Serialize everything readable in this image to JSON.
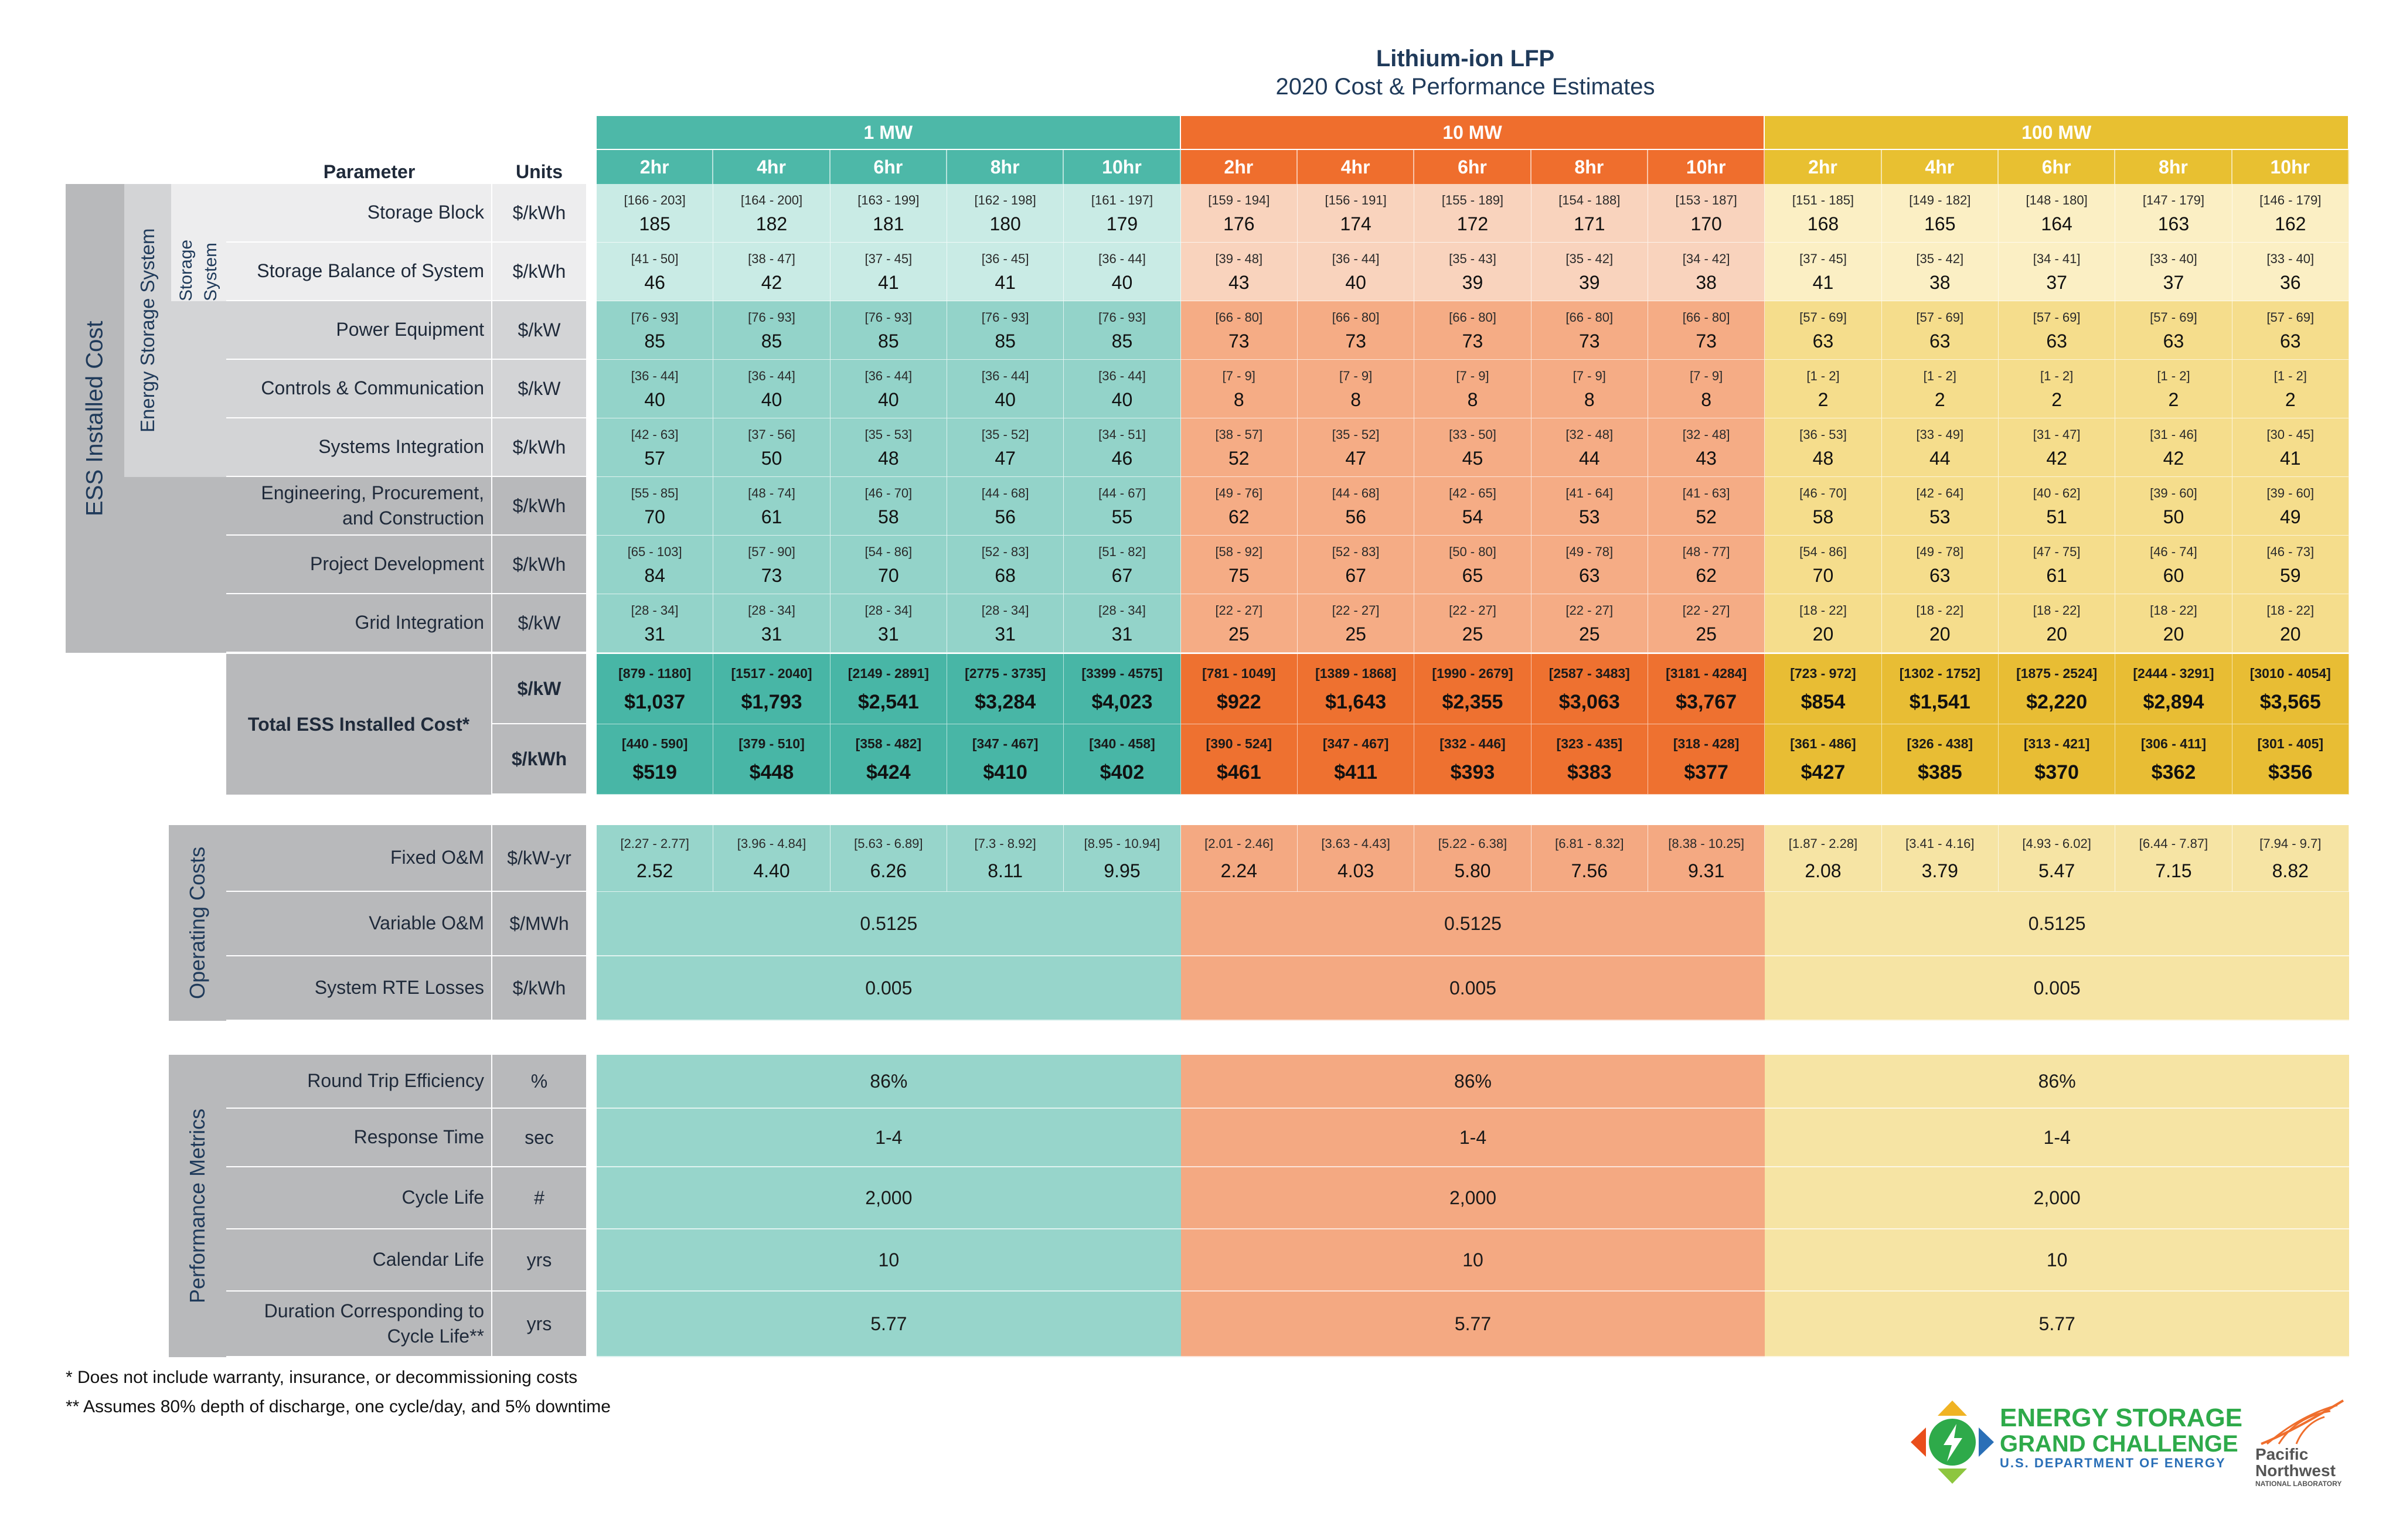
{
  "title": "Lithium-ion LFP",
  "subtitle": "2020 Cost & Performance Estimates",
  "headers": {
    "parameter": "Parameter",
    "units": "Units"
  },
  "mw_groups": [
    "1 MW",
    "10 MW",
    "100 MW"
  ],
  "durations": [
    "2hr",
    "4hr",
    "6hr",
    "8hr",
    "10hr"
  ],
  "colors": {
    "g0": {
      "head": "#4db8a8",
      "dur": "#4db8a8",
      "sub": "#c9ebe5",
      "main": "#93d3c9",
      "total": "#48b6a6",
      "merged": "#97d5cb"
    },
    "g1": {
      "head": "#ef6e2d",
      "dur": "#ef6e2d",
      "sub": "#f9d3bd",
      "main": "#f5ac85",
      "total": "#ee7130",
      "merged": "#f4a982"
    },
    "g2": {
      "head": "#e8c031",
      "dur": "#e8c031",
      "sub": "#fbefc4",
      "main": "#f5dd8c",
      "total": "#e8bd34",
      "merged": "#f6e4a4"
    }
  },
  "side_labels": {
    "ess": "ESS Installed Cost",
    "energy_storage_system": "Energy Storage System",
    "storage_system": "Storage System",
    "operating_costs": "Operating Costs",
    "performance_metrics": "Performance Metrics"
  },
  "rows": [
    {
      "label": "Storage Block",
      "unit": "$/kWh",
      "range": [
        "[166 - 203]",
        "[164 - 200]",
        "[163 - 199]",
        "[162 - 198]",
        "[161 - 197]",
        "[159 - 194]",
        "[156 - 191]",
        "[155 - 189]",
        "[154 - 188]",
        "[153 - 187]",
        "[151 - 185]",
        "[149 - 182]",
        "[148 - 180]",
        "[147 - 179]",
        "[146 - 179]"
      ],
      "value": [
        "185",
        "182",
        "181",
        "180",
        "179",
        "176",
        "174",
        "172",
        "171",
        "170",
        "168",
        "165",
        "164",
        "163",
        "162"
      ]
    },
    {
      "label": "Storage Balance of System",
      "unit": "$/kWh",
      "range": [
        "[41 - 50]",
        "[38 - 47]",
        "[37 - 45]",
        "[36 - 45]",
        "[36 - 44]",
        "[39 - 48]",
        "[36 - 44]",
        "[35 - 43]",
        "[35 - 42]",
        "[34 - 42]",
        "[37 - 45]",
        "[35 - 42]",
        "[34 - 41]",
        "[33 - 40]",
        "[33 - 40]"
      ],
      "value": [
        "46",
        "42",
        "41",
        "41",
        "40",
        "43",
        "40",
        "39",
        "39",
        "38",
        "41",
        "38",
        "37",
        "37",
        "36"
      ]
    },
    {
      "label": "Power Equipment",
      "unit": "$/kW",
      "range": [
        "[76 - 93]",
        "[76 - 93]",
        "[76 - 93]",
        "[76 - 93]",
        "[76 - 93]",
        "[66 - 80]",
        "[66 - 80]",
        "[66 - 80]",
        "[66 - 80]",
        "[66 - 80]",
        "[57 - 69]",
        "[57 - 69]",
        "[57 - 69]",
        "[57 - 69]",
        "[57 - 69]"
      ],
      "value": [
        "85",
        "85",
        "85",
        "85",
        "85",
        "73",
        "73",
        "73",
        "73",
        "73",
        "63",
        "63",
        "63",
        "63",
        "63"
      ]
    },
    {
      "label": "Controls & Communication",
      "unit": "$/kW",
      "range": [
        "[36 - 44]",
        "[36 - 44]",
        "[36 - 44]",
        "[36 - 44]",
        "[36 - 44]",
        "[7 - 9]",
        "[7 - 9]",
        "[7 - 9]",
        "[7 - 9]",
        "[7 - 9]",
        "[1 - 2]",
        "[1 - 2]",
        "[1 - 2]",
        "[1 - 2]",
        "[1 - 2]"
      ],
      "value": [
        "40",
        "40",
        "40",
        "40",
        "40",
        "8",
        "8",
        "8",
        "8",
        "8",
        "2",
        "2",
        "2",
        "2",
        "2"
      ]
    },
    {
      "label": "Systems Integration",
      "unit": "$/kWh",
      "range": [
        "[42 - 63]",
        "[37 - 56]",
        "[35 - 53]",
        "[35 - 52]",
        "[34 - 51]",
        "[38 - 57]",
        "[35 - 52]",
        "[33 - 50]",
        "[32 - 48]",
        "[32 - 48]",
        "[36 - 53]",
        "[33 - 49]",
        "[31 - 47]",
        "[31 - 46]",
        "[30 - 45]"
      ],
      "value": [
        "57",
        "50",
        "48",
        "47",
        "46",
        "52",
        "47",
        "45",
        "44",
        "43",
        "48",
        "44",
        "42",
        "42",
        "41"
      ]
    },
    {
      "label": "Engineering, Procurement, and Construction",
      "unit": "$/kWh",
      "range": [
        "[55 - 85]",
        "[48 - 74]",
        "[46 - 70]",
        "[44 - 68]",
        "[44 - 67]",
        "[49 - 76]",
        "[44 - 68]",
        "[42 - 65]",
        "[41 - 64]",
        "[41 - 63]",
        "[46 - 70]",
        "[42 - 64]",
        "[40 - 62]",
        "[39 - 60]",
        "[39 - 60]"
      ],
      "value": [
        "70",
        "61",
        "58",
        "56",
        "55",
        "62",
        "56",
        "54",
        "53",
        "52",
        "58",
        "53",
        "51",
        "50",
        "49"
      ]
    },
    {
      "label": "Project Development",
      "unit": "$/kWh",
      "range": [
        "[65 - 103]",
        "[57 - 90]",
        "[54 - 86]",
        "[52 - 83]",
        "[51 - 82]",
        "[58 - 92]",
        "[52 - 83]",
        "[50 - 80]",
        "[49 - 78]",
        "[48 - 77]",
        "[54 - 86]",
        "[49 - 78]",
        "[47 - 75]",
        "[46 - 74]",
        "[46 - 73]"
      ],
      "value": [
        "84",
        "73",
        "70",
        "68",
        "67",
        "75",
        "67",
        "65",
        "63",
        "62",
        "70",
        "63",
        "61",
        "60",
        "59"
      ]
    },
    {
      "label": "Grid Integration",
      "unit": "$/kW",
      "range": [
        "[28 - 34]",
        "[28 - 34]",
        "[28 - 34]",
        "[28 - 34]",
        "[28 - 34]",
        "[22 - 27]",
        "[22 - 27]",
        "[22 - 27]",
        "[22 - 27]",
        "[22 - 27]",
        "[18 - 22]",
        "[18 - 22]",
        "[18 - 22]",
        "[18 - 22]",
        "[18 - 22]"
      ],
      "value": [
        "31",
        "31",
        "31",
        "31",
        "31",
        "25",
        "25",
        "25",
        "25",
        "25",
        "20",
        "20",
        "20",
        "20",
        "20"
      ]
    }
  ],
  "total": {
    "label": "Total ESS Installed Cost*",
    "rows": [
      {
        "unit": "$/kW",
        "range": [
          "[879 - 1180]",
          "[1517 - 2040]",
          "[2149 - 2891]",
          "[2775 - 3735]",
          "[3399 - 4575]",
          "[781 - 1049]",
          "[1389 - 1868]",
          "[1990 - 2679]",
          "[2587 - 3483]",
          "[3181 - 4284]",
          "[723 - 972]",
          "[1302 - 1752]",
          "[1875 - 2524]",
          "[2444 - 3291]",
          "[3010 - 4054]"
        ],
        "value": [
          "$1,037",
          "$1,793",
          "$2,541",
          "$3,284",
          "$4,023",
          "$922",
          "$1,643",
          "$2,355",
          "$3,063",
          "$3,767",
          "$854",
          "$1,541",
          "$2,220",
          "$2,894",
          "$3,565"
        ]
      },
      {
        "unit": "$/kWh",
        "range": [
          "[440 - 590]",
          "[379 - 510]",
          "[358 - 482]",
          "[347 - 467]",
          "[340 - 458]",
          "[390 - 524]",
          "[347 - 467]",
          "[332 - 446]",
          "[323 - 435]",
          "[318 - 428]",
          "[361 - 486]",
          "[326 - 438]",
          "[313 - 421]",
          "[306 - 411]",
          "[301 - 405]"
        ],
        "value": [
          "$519",
          "$448",
          "$424",
          "$410",
          "$402",
          "$461",
          "$411",
          "$393",
          "$383",
          "$377",
          "$427",
          "$385",
          "$370",
          "$362",
          "$356"
        ]
      }
    ]
  },
  "operating": {
    "fixed": {
      "label": "Fixed O&M",
      "unit": "$/kW-yr",
      "range": [
        "[2.27 - 2.77]",
        "[3.96 - 4.84]",
        "[5.63 - 6.89]",
        "[7.3 - 8.92]",
        "[8.95 - 10.94]",
        "[2.01 - 2.46]",
        "[3.63 - 4.43]",
        "[5.22 - 6.38]",
        "[6.81 - 8.32]",
        "[8.38 - 10.25]",
        "[1.87 - 2.28]",
        "[3.41 - 4.16]",
        "[4.93 - 6.02]",
        "[6.44 - 7.87]",
        "[7.94 - 9.7]"
      ],
      "value": [
        "2.52",
        "4.40",
        "6.26",
        "8.11",
        "9.95",
        "2.24",
        "4.03",
        "5.80",
        "7.56",
        "9.31",
        "2.08",
        "3.79",
        "5.47",
        "7.15",
        "8.82"
      ]
    },
    "merged": [
      {
        "label": "Variable O&M",
        "unit": "$/MWh",
        "values": [
          "0.5125",
          "0.5125",
          "0.5125"
        ]
      },
      {
        "label": "System RTE Losses",
        "unit": "$/kWh",
        "values": [
          "0.005",
          "0.005",
          "0.005"
        ]
      }
    ]
  },
  "performance": [
    {
      "label": "Round Trip Efficiency",
      "unit": "%",
      "values": [
        "86%",
        "86%",
        "86%"
      ]
    },
    {
      "label": "Response Time",
      "unit": "sec",
      "values": [
        "1-4",
        "1-4",
        "1-4"
      ]
    },
    {
      "label": "Cycle Life",
      "unit": "#",
      "values": [
        "2,000",
        "2,000",
        "2,000"
      ]
    },
    {
      "label": "Calendar Life",
      "unit": "yrs",
      "values": [
        "10",
        "10",
        "10"
      ]
    },
    {
      "label": "Duration Corresponding to Cycle Life**",
      "unit": "yrs",
      "values": [
        "5.77",
        "5.77",
        "5.77"
      ]
    }
  ],
  "footnotes": [
    "* Does not include warranty, insurance, or decommissioning costs",
    "** Assumes 80% depth of discharge, one cycle/day, and 5% downtime"
  ],
  "logos": {
    "esgc": [
      "ENERGY STORAGE",
      "GRAND CHALLENGE",
      "U.S. DEPARTMENT OF ENERGY"
    ],
    "pnnl": [
      "Pacific",
      "Northwest",
      "NATIONAL LABORATORY"
    ]
  }
}
